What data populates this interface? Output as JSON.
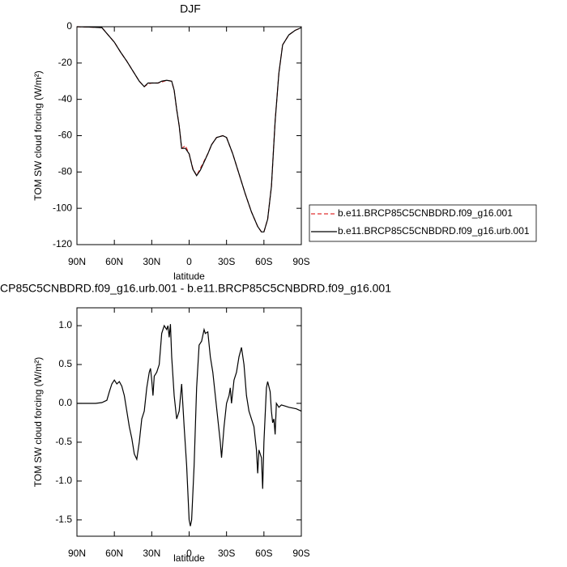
{
  "chart_data": [
    {
      "type": "line",
      "title": "DJF",
      "xlabel": "latitude",
      "ylabel": "TOM SW cloud forcing (W/m²)",
      "x": [
        90,
        80,
        70,
        60,
        55,
        50,
        45,
        40,
        36,
        33,
        30,
        25,
        22,
        18,
        14,
        12,
        10,
        8,
        6,
        3,
        0,
        -3,
        -6,
        -9,
        -12,
        -15,
        -18,
        -22,
        -27,
        -30,
        -35,
        -40,
        -45,
        -50,
        -55,
        -58,
        -60,
        -63,
        -66,
        -69,
        -72,
        -75,
        -80,
        -85,
        -90
      ],
      "series": [
        {
          "name": "b.e11.BRCP85C5CNBDRD.f09_g16.001",
          "color": "#e03030",
          "dash": true,
          "values": [
            0,
            -0.2,
            -0.5,
            -8.5,
            -14,
            -19,
            -24.5,
            -30,
            -33,
            -31.5,
            -31,
            -31,
            -30.5,
            -29.5,
            -30,
            -35,
            -45.5,
            -54.5,
            -67,
            -65.5,
            -70,
            -78,
            -82,
            -78,
            -74,
            -70,
            -65,
            -61,
            -60,
            -61,
            -70,
            -81,
            -92,
            -102,
            -110,
            -113,
            -113,
            -106,
            -88,
            -52,
            -25.5,
            -10,
            -4.5,
            -2,
            -0.5
          ]
        },
        {
          "name": "b.e11.BRCP85C5CNBDRD.f09_g16.urb.001",
          "color": "#000000",
          "dash": false,
          "values": [
            0,
            -0.2,
            -0.5,
            -8.5,
            -14,
            -19,
            -24.5,
            -30,
            -33,
            -31,
            -31,
            -31,
            -30,
            -29.5,
            -30,
            -35,
            -45.5,
            -54.5,
            -67,
            -67,
            -70,
            -78.5,
            -82,
            -79,
            -74.5,
            -70,
            -65,
            -61,
            -60,
            -61,
            -70,
            -81,
            -92,
            -102,
            -110,
            -113,
            -113,
            -106,
            -88,
            -52,
            -25.5,
            -10,
            -4.5,
            -2,
            -0.5
          ]
        }
      ],
      "xlim": [
        90,
        -90
      ],
      "xticks": [
        {
          "value": 90,
          "label": "90N"
        },
        {
          "value": 60,
          "label": "60N"
        },
        {
          "value": 30,
          "label": "30N"
        },
        0,
        {
          "value": -30,
          "label": "30S"
        },
        {
          "value": -60,
          "label": "60S"
        },
        {
          "value": -90,
          "label": "90S"
        }
      ],
      "ylim": [
        -120,
        0
      ],
      "yticks": [
        0,
        -20,
        -40,
        -60,
        -80,
        -100,
        -120
      ],
      "grid": false,
      "legend": "right"
    },
    {
      "type": "line",
      "title": "CP85C5CNBDRD.f09_g16.urb.001 - b.e11.BRCP85C5CNBDRD.f09_g16.001",
      "xlabel": "latitude",
      "ylabel": "TOM SW cloud forcing (W/m²)",
      "x": [
        90,
        75,
        70,
        66,
        64,
        62,
        60,
        58,
        56,
        54,
        52,
        50,
        48,
        46,
        44,
        42,
        40,
        38,
        36,
        34,
        32,
        31,
        30,
        29,
        28,
        26,
        24,
        22,
        20,
        18,
        17,
        16,
        15,
        14,
        12,
        10,
        8,
        6,
        4,
        2,
        0,
        -1,
        -2,
        -4,
        -6,
        -8,
        -10,
        -12,
        -13,
        -15,
        -17,
        -19,
        -21,
        -23,
        -25,
        -26,
        -28,
        -30,
        -32,
        -33,
        -34,
        -36,
        -38,
        -40,
        -42,
        -44,
        -46,
        -48,
        -50,
        -52,
        -54,
        -55,
        -56,
        -58,
        -59,
        -60,
        -62,
        -63,
        -65,
        -66,
        -67,
        -68,
        -69,
        -70,
        -72,
        -74,
        -76,
        -80,
        -86,
        -90
      ],
      "values": [
        0,
        0,
        0.01,
        0.04,
        0.15,
        0.25,
        0.3,
        0.25,
        0.28,
        0.22,
        0.1,
        -0.1,
        -0.3,
        -0.45,
        -0.65,
        -0.72,
        -0.5,
        -0.2,
        -0.1,
        0.2,
        0.4,
        0.45,
        0.3,
        0.1,
        0.35,
        0.4,
        0.5,
        0.9,
        1.0,
        0.95,
        1.0,
        0.85,
        1.02,
        0.6,
        0.1,
        -0.2,
        -0.1,
        0.25,
        -0.3,
        -0.8,
        -1.5,
        -1.58,
        -1.5,
        -0.8,
        0.2,
        0.75,
        0.8,
        0.95,
        0.9,
        0.92,
        0.6,
        0.4,
        0.1,
        -0.2,
        -0.5,
        -0.7,
        -0.3,
        0.0,
        0.1,
        0.2,
        0.0,
        0.3,
        0.4,
        0.6,
        0.72,
        0.5,
        0.1,
        -0.1,
        -0.2,
        -0.3,
        -0.6,
        -0.9,
        -0.6,
        -0.7,
        -1.1,
        -0.5,
        0.2,
        0.28,
        0.15,
        -0.1,
        -0.25,
        -0.2,
        -0.4,
        0.0,
        -0.05,
        -0.02,
        -0.03,
        -0.05,
        -0.07,
        -0.1
      ],
      "color": "#000000",
      "xlim": [
        90,
        -90
      ],
      "xticks": [
        {
          "value": 90,
          "label": "90N"
        },
        {
          "value": 60,
          "label": "60N"
        },
        {
          "value": 30,
          "label": "30N"
        },
        0,
        {
          "value": -30,
          "label": "30S"
        },
        {
          "value": -60,
          "label": "60S"
        },
        {
          "value": -90,
          "label": "90S"
        }
      ],
      "ylim": [
        -1.71,
        1.23
      ],
      "yticks": [
        {
          "value": 1.0,
          "label": "1.0"
        },
        {
          "value": 0.5,
          "label": "0.5"
        },
        {
          "value": 0.0,
          "label": "0.0"
        },
        {
          "value": -0.5,
          "label": "-0.5"
        },
        {
          "value": -1.0,
          "label": "-1.0"
        },
        {
          "value": -1.5,
          "label": "-1.5"
        }
      ],
      "grid": false
    }
  ]
}
